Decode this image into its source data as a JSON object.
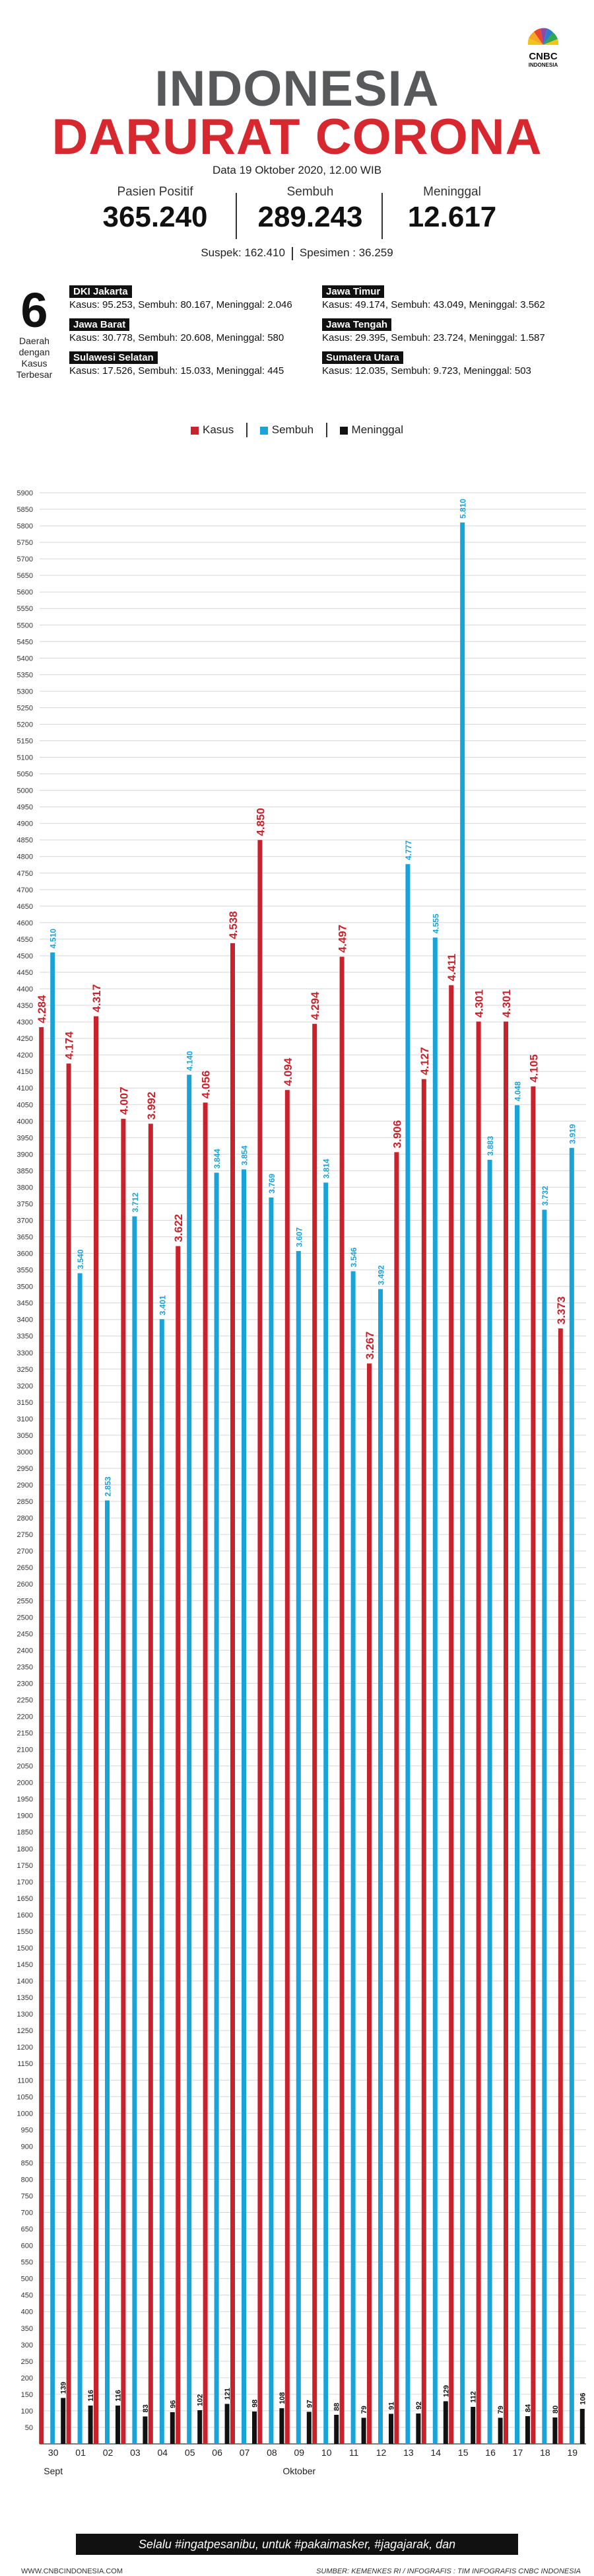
{
  "header": {
    "title_line1": "INDONESIA",
    "title_line2": "DARURAT CORONA",
    "date": "Data 19 Oktober 2020, 12.00 WIB",
    "logo_text": "CNBC",
    "logo_subtext": "INDONESIA"
  },
  "stats": [
    {
      "label": "Pasien Positif",
      "value": "365.240"
    },
    {
      "label": "Sembuh",
      "value": "289.243"
    },
    {
      "label": "Meninggal",
      "value": "12.617"
    }
  ],
  "suspek": "Suspek: 162.410",
  "spesimen": "Spesimen : 36.259",
  "regions_box": {
    "number": "6",
    "caption": [
      "Daerah",
      "dengan",
      "Kasus",
      "Terbesar"
    ]
  },
  "regions": [
    {
      "name": "DKI Jakarta",
      "detail": "Kasus: 95.253, Sembuh: 80.167, Meninggal: 2.046"
    },
    {
      "name": "Jawa Barat",
      "detail": "Kasus: 30.778, Sembuh: 20.608, Meninggal: 580"
    },
    {
      "name": "Sulawesi Selatan",
      "detail": "Kasus: 17.526, Sembuh: 15.033, Meninggal: 445"
    },
    {
      "name": "Jawa Timur",
      "detail": "Kasus: 49.174, Sembuh: 43.049, Meninggal: 3.562"
    },
    {
      "name": "Jawa Tengah",
      "detail": "Kasus: 29.395, Sembuh: 23.724, Meninggal: 1.587"
    },
    {
      "name": "Sumatera Utara",
      "detail": "Kasus: 12.035, Sembuh: 9.723, Meninggal: 503"
    }
  ],
  "colors": {
    "kasus": "#c8232c",
    "sembuh": "#1aa3d9",
    "meninggal": "#111111",
    "title_gray": "#58595b",
    "title_red": "#d7282f",
    "grid": "#d6d6d6"
  },
  "chart_data": {
    "type": "bar",
    "categories": [
      "30",
      "01",
      "02",
      "03",
      "04",
      "05",
      "06",
      "07",
      "08",
      "09",
      "10",
      "11",
      "12",
      "13",
      "14",
      "15",
      "16",
      "17",
      "18",
      "19"
    ],
    "month_labels": [
      {
        "label": "Sept",
        "at_category": 0
      },
      {
        "label": "Oktober",
        "at_category": 9
      }
    ],
    "series": [
      {
        "name": "Kasus",
        "color": "#c8232c",
        "values": [
          4284,
          4174,
          4317,
          4007,
          3992,
          3622,
          4056,
          4538,
          4850,
          4094,
          4294,
          4497,
          3267,
          3906,
          4127,
          4411,
          4301,
          4301,
          4105,
          3373
        ],
        "labels": [
          "4.284",
          "4.174",
          "4.317",
          "4.007",
          "3.992",
          "3.622",
          "4.056",
          "4.538",
          "4.850",
          "4.094",
          "4.294",
          "4.497",
          "3.267",
          "3.906",
          "4.127",
          "4.411",
          "4.301",
          "4.301",
          "4.105",
          "3.373"
        ]
      },
      {
        "name": "Sembuh",
        "color": "#1aa3d9",
        "values": [
          4510,
          3540,
          2853,
          3712,
          3401,
          4140,
          3844,
          3854,
          3769,
          3607,
          3814,
          3546,
          3492,
          4777,
          4555,
          5810,
          3883,
          4048,
          3732,
          3919
        ],
        "labels": [
          "4.510",
          "3.540",
          "2.853",
          "3.712",
          "3.401",
          "4.140",
          "3.844",
          "3.854",
          "3.769",
          "3.607",
          "3.814",
          "3.546",
          "3.492",
          "4.777",
          "4.555",
          "5.810",
          "3.883",
          "4.048",
          "3.732",
          "3.919"
        ]
      },
      {
        "name": "Meninggal",
        "color": "#111111",
        "values": [
          139,
          116,
          116,
          83,
          96,
          102,
          121,
          98,
          108,
          97,
          88,
          79,
          91,
          92,
          129,
          112,
          79,
          84,
          80,
          106
        ],
        "labels": [
          "139",
          "116",
          "116",
          "83",
          "96",
          "102",
          "121",
          "98",
          "108",
          "97",
          "88",
          "79",
          "91",
          "92",
          "129",
          "112",
          "79",
          "84",
          "80",
          "106"
        ]
      }
    ],
    "ylim": [
      0,
      5900
    ],
    "ytick_step": 50,
    "grid": true,
    "legend_position": "top-center"
  },
  "footer": {
    "banner": "Selalu #ingatpesanibu, untuk #pakaimasker, #jagajarak, dan #cucitanganpakaisabun",
    "website": "WWW.CNBCINDONESIA.COM",
    "source": "SUMBER: KEMENKES RI  /  INFOGRAFIS : TIM INFOGRAFIS CNBC INDONESIA"
  }
}
